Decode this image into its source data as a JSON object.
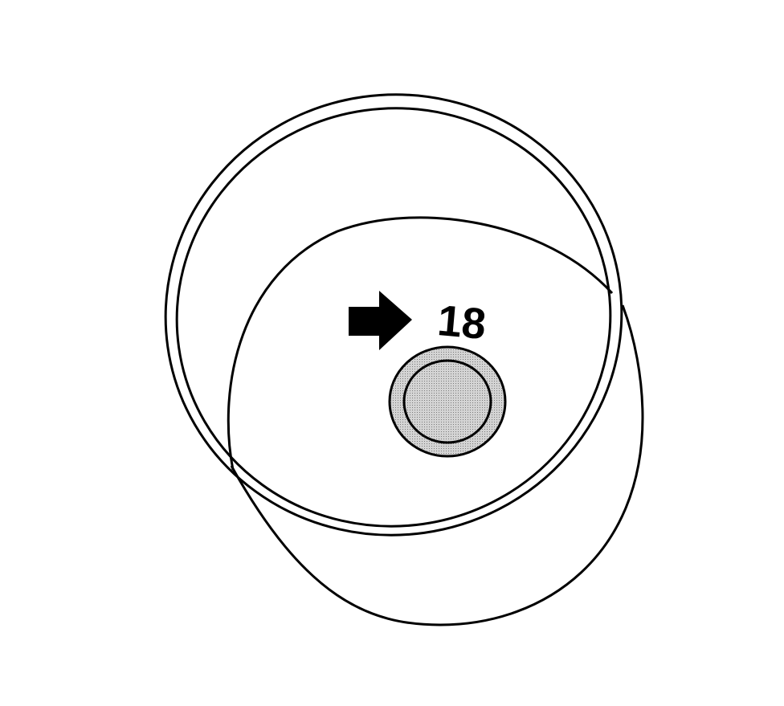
{
  "callout": {
    "label": "18",
    "arrow_icon": "right-arrow-icon"
  },
  "colors": {
    "line": "#000000",
    "background": "#ffffff",
    "plug_fill": "#c8c8c8"
  }
}
